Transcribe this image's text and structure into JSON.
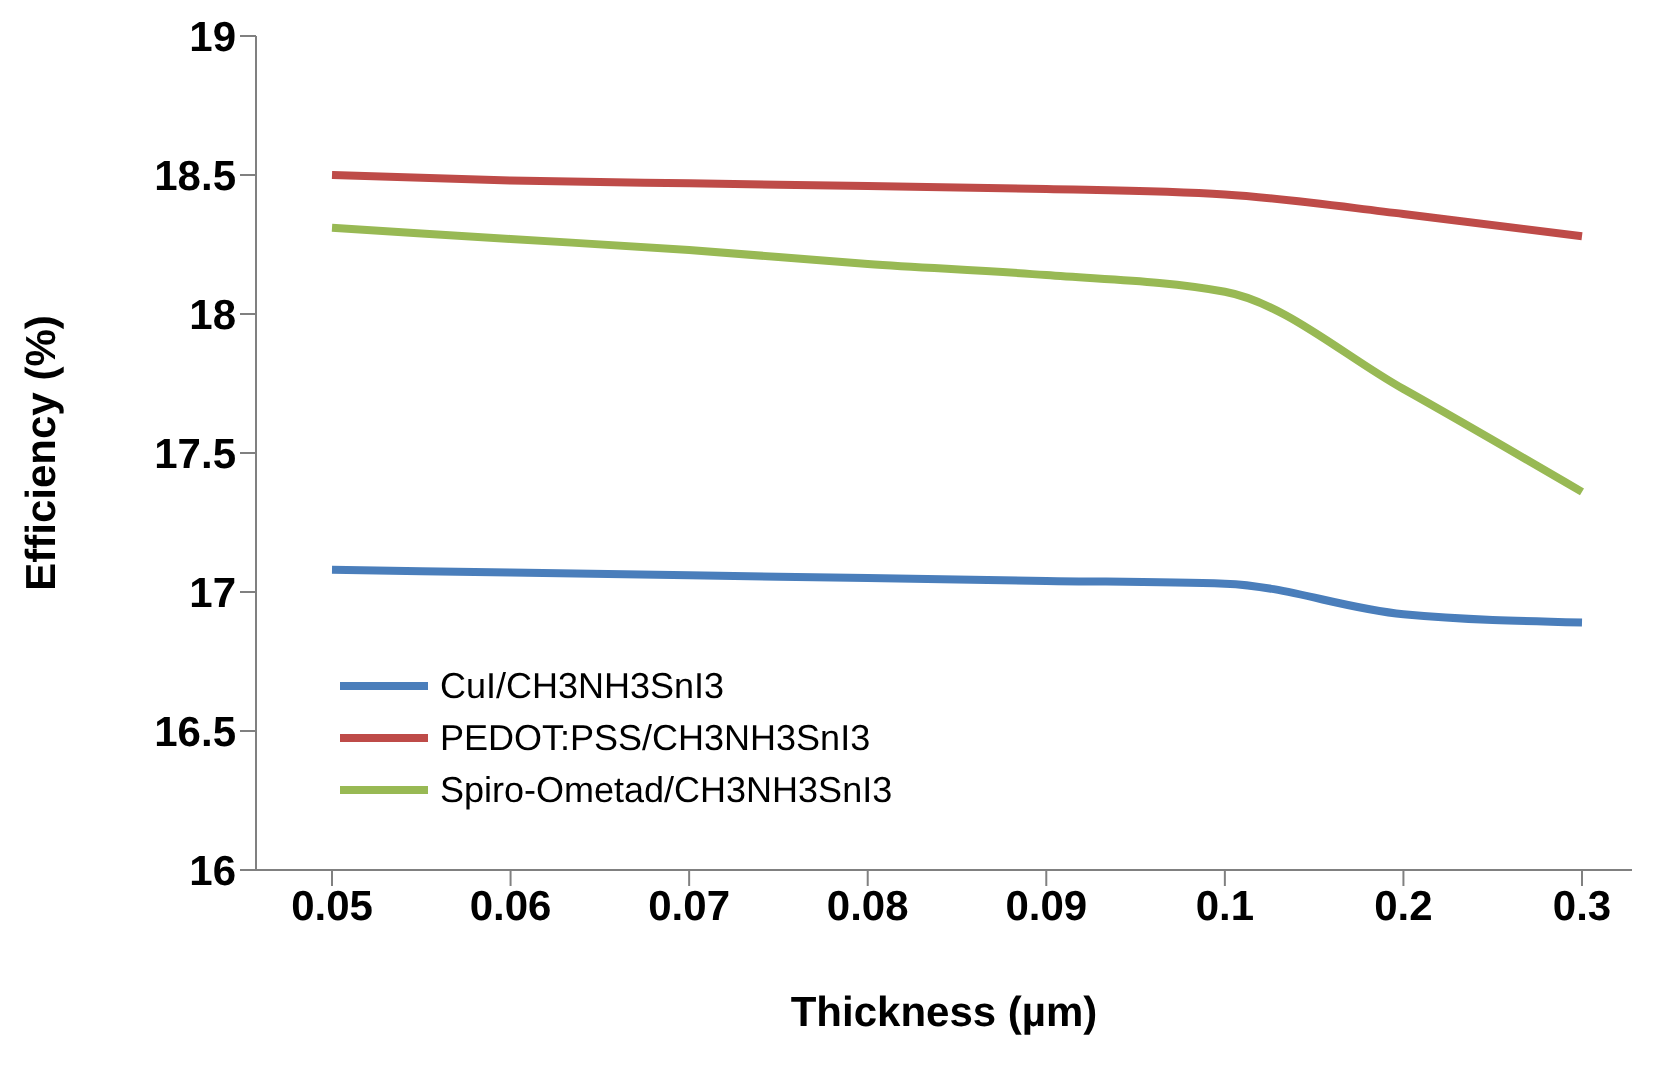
{
  "chart_data": {
    "type": "line",
    "xlabel": "Thickness (µm)",
    "ylabel": "Efficiency (%)",
    "categories": [
      "0.05",
      "0.06",
      "0.07",
      "0.08",
      "0.09",
      "0.1",
      "0.2",
      "0.3"
    ],
    "series": [
      {
        "name": "CuI/CH3NH3SnI3",
        "color": "#4a7ebb",
        "values": [
          17.08,
          17.07,
          17.06,
          17.05,
          17.04,
          17.03,
          16.92,
          16.89
        ]
      },
      {
        "name": "PEDOT:PSS/CH3NH3SnI3",
        "color": "#be4b48",
        "values": [
          18.5,
          18.48,
          18.47,
          18.46,
          18.45,
          18.43,
          18.36,
          18.28
        ]
      },
      {
        "name": "Spiro-Ometad/CH3NH3SnI3",
        "color": "#98b954",
        "values": [
          18.31,
          18.27,
          18.23,
          18.18,
          18.14,
          18.08,
          17.73,
          17.36
        ]
      }
    ],
    "ylim": [
      16,
      19
    ],
    "yticks": [
      16,
      16.5,
      17,
      17.5,
      18,
      18.5,
      19
    ],
    "grid": false,
    "legend": "bottom left",
    "marker": "none",
    "line_style": "solid"
  }
}
